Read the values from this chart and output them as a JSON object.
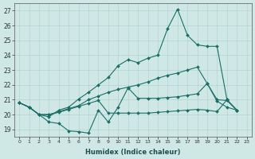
{
  "xlabel": "Humidex (Indice chaleur)",
  "background_color": "#cfe8e5",
  "grid_color": "#b0d4d0",
  "line_color": "#1a6e66",
  "xlim": [
    -0.5,
    23.5
  ],
  "ylim": [
    18.5,
    27.5
  ],
  "yticks": [
    19,
    20,
    21,
    22,
    23,
    24,
    25,
    26,
    27
  ],
  "xticks": [
    0,
    1,
    2,
    3,
    4,
    5,
    6,
    7,
    8,
    9,
    10,
    11,
    12,
    13,
    14,
    15,
    16,
    17,
    18,
    19,
    20,
    21,
    22,
    23
  ],
  "xtick_labels": [
    "0",
    "1",
    "2",
    "3",
    "4",
    "5",
    "6",
    "7",
    "8",
    "9",
    "10",
    "11",
    "12",
    "13",
    "14",
    "15",
    "16",
    "17",
    "18",
    "19",
    "20",
    "21",
    "22",
    "23"
  ],
  "series": [
    [
      20.8,
      20.5,
      20.0,
      19.5,
      19.4,
      18.9,
      18.85,
      18.75,
      20.3,
      19.5,
      20.5,
      21.8,
      21.1,
      21.1,
      21.1,
      21.15,
      21.2,
      21.3,
      21.4,
      22.1,
      21.0,
      20.95,
      20.3
    ],
    [
      20.8,
      20.5,
      20.0,
      19.85,
      20.3,
      20.5,
      21.05,
      21.5,
      22.0,
      22.5,
      23.3,
      23.7,
      23.5,
      23.8,
      24.0,
      25.8,
      27.1,
      25.35,
      24.7,
      24.6,
      24.6,
      21.0,
      20.3
    ],
    [
      20.8,
      20.5,
      20.0,
      20.0,
      20.2,
      20.4,
      20.6,
      21.0,
      21.25,
      21.5,
      21.7,
      21.85,
      22.0,
      22.2,
      22.45,
      22.65,
      22.8,
      23.0,
      23.2,
      22.1,
      20.9,
      20.5,
      20.3
    ],
    [
      20.8,
      20.5,
      20.0,
      20.0,
      20.15,
      20.35,
      20.55,
      20.75,
      20.95,
      20.1,
      20.1,
      20.1,
      20.1,
      20.1,
      20.15,
      20.2,
      20.25,
      20.3,
      20.35,
      20.3,
      20.2,
      21.0,
      20.3
    ]
  ]
}
